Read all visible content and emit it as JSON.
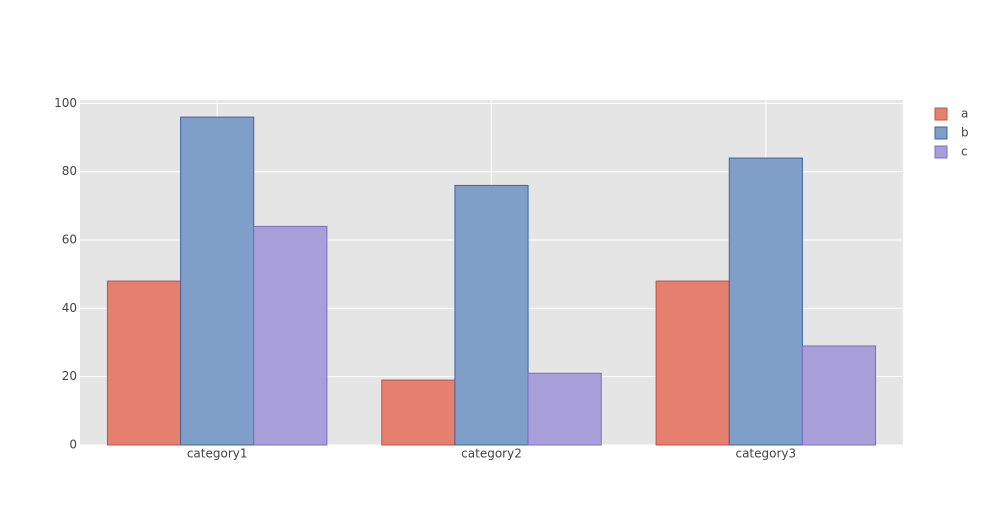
{
  "chart_data": {
    "type": "bar",
    "categories": [
      "category1",
      "category2",
      "category3"
    ],
    "series": [
      {
        "name": "a",
        "color": "#e5806f",
        "edge": "#c0504d",
        "values": [
          48,
          19,
          48
        ]
      },
      {
        "name": "b",
        "color": "#7f9fc8",
        "edge": "#3e65a0",
        "values": [
          96,
          76,
          84
        ]
      },
      {
        "name": "c",
        "color": "#a99fd8",
        "edge": "#7a6cc8",
        "values": [
          64,
          21,
          29
        ]
      }
    ],
    "ylim": [
      0,
      101
    ],
    "yticks": [
      0,
      20,
      40,
      60,
      80,
      100
    ],
    "grid": true,
    "legend": "right"
  }
}
